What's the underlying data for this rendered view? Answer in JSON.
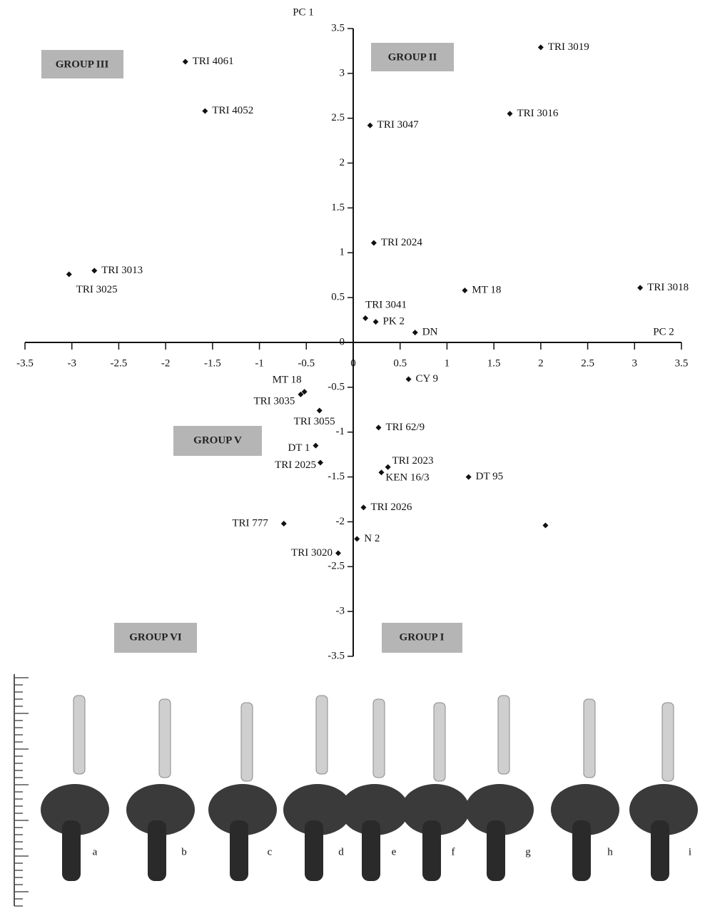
{
  "chart_data": {
    "type": "scatter",
    "x_label": "PC 2",
    "y_label": "PC 1",
    "x": [
      -1.79,
      -1.58,
      2.0,
      1.67,
      0.18,
      0.22,
      -2.76,
      -3.03,
      1.19,
      3.06,
      0.13,
      0.24,
      0.66,
      0.59,
      -0.52,
      -0.56,
      -0.36,
      0.27,
      -0.4,
      -0.35,
      0.37,
      0.3,
      1.23,
      0.11,
      -0.74,
      0.04,
      -0.16,
      2.05
    ],
    "values": [
      3.13,
      2.58,
      3.29,
      2.55,
      2.42,
      1.11,
      0.8,
      0.76,
      0.58,
      0.61,
      0.27,
      0.23,
      0.11,
      -0.41,
      -0.55,
      -0.58,
      -0.76,
      -0.95,
      -1.15,
      -1.34,
      -1.39,
      -1.45,
      -1.5,
      -1.84,
      -2.02,
      -2.19,
      -2.35,
      -2.04
    ],
    "point_labels": [
      "TRI 4061",
      "TRI 4052",
      "TRI 3019",
      "TRI 3016",
      "TRI 3047",
      "TRI 2024",
      "TRI 3013",
      "TRI 3025",
      "MT 18",
      "TRI 3018",
      "TRI 3041",
      "PK 2",
      "DN",
      "CY 9",
      "MT 18",
      "TRI 3035",
      "TRI 3055",
      "TRI 62/9",
      "DT 1",
      "TRI 2025",
      "TRI 2023",
      "KEN 16/3",
      "DT 95",
      "TRI 2026",
      "TRI 777",
      "N 2",
      "TRI 3020",
      null
    ],
    "color": "#111111",
    "xlim": [
      -3.5,
      3.5
    ],
    "ylim": [
      -3.5,
      3.5
    ],
    "xticks": [
      -3.5,
      -3,
      -2.5,
      -2,
      -1.5,
      -1,
      -0.5,
      0,
      0.5,
      1,
      1.5,
      2,
      2.5,
      3,
      3.5
    ],
    "yticks": [
      -3.5,
      -3,
      -2.5,
      -2,
      -1.5,
      -1,
      -0.5,
      0,
      0.5,
      1,
      1.5,
      2,
      2.5,
      3,
      3.5
    ],
    "annotations": [
      "GROUP III",
      "GROUP II",
      "GROUP V",
      "GROUP VI",
      "GROUP I"
    ]
  },
  "figure": {
    "panel_labels": [
      "a",
      "b",
      "c",
      "d",
      "e",
      "f",
      "g",
      "h",
      "i"
    ]
  }
}
